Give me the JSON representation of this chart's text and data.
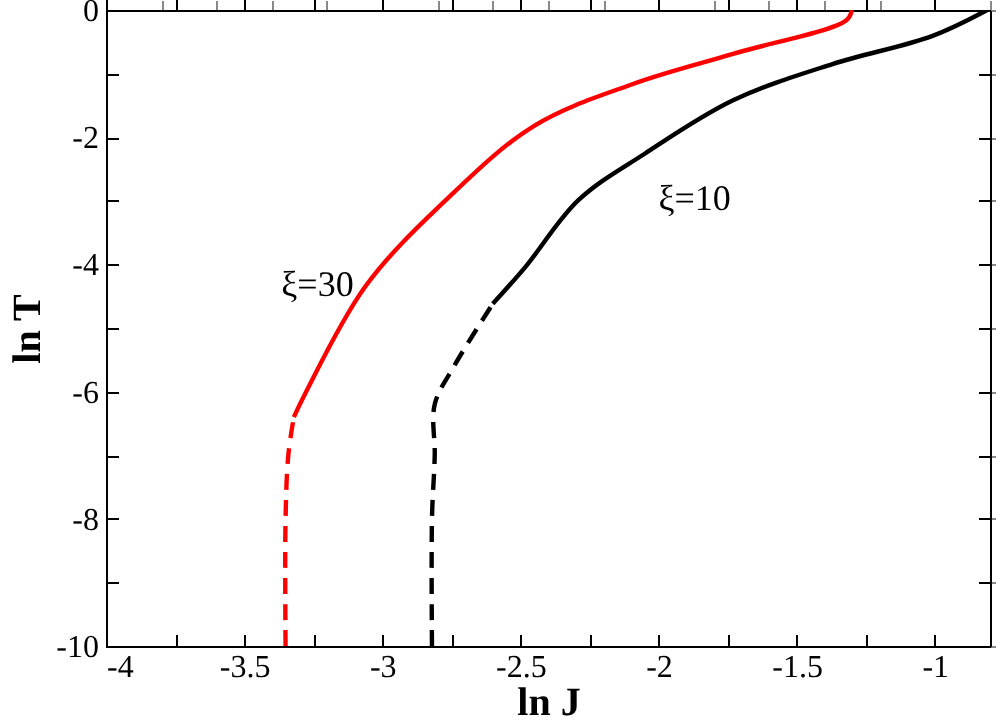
{
  "chart_data": {
    "type": "line",
    "xlabel": "ln J",
    "ylabel": "ln T",
    "xlim": [
      -4,
      -0.8
    ],
    "ylim": [
      -10,
      0
    ],
    "xticks": [
      -4,
      {
        "value": -3.75,
        "label": null
      },
      -3.5,
      {
        "value": -3.25,
        "label": null
      },
      -3,
      {
        "value": -2.75,
        "label": null
      },
      -2.5,
      {
        "value": -2.25,
        "label": null
      },
      -2,
      {
        "value": -1.75,
        "label": null
      },
      -1.5,
      {
        "value": -1.25,
        "label": null
      },
      -1
    ],
    "yticks": [
      -10,
      {
        "value": -9,
        "label": null
      },
      -8,
      {
        "value": -7,
        "label": null
      },
      -6,
      {
        "value": -5,
        "label": null
      },
      -4,
      {
        "value": -3,
        "label": null
      },
      -2,
      {
        "value": -1,
        "label": null
      },
      0
    ],
    "grid": false,
    "marker": "none",
    "series": [
      {
        "name": "ξ=30",
        "color": "#ff0000",
        "line_style": "solid",
        "x": [
          -3.32,
          -3.28,
          -3.06,
          -2.77,
          -2.45,
          -2.09,
          -1.73,
          -1.32,
          -1.3
        ],
        "values": [
          -6.4,
          -6.04,
          -4.34,
          -2.99,
          -1.82,
          -1.16,
          -0.69,
          -0.16,
          0
        ]
      },
      {
        "name": "ξ=10",
        "color": "#000000",
        "line_style": "solid",
        "x": [
          -2.6,
          -2.48,
          -2.29,
          -2.05,
          -1.73,
          -1.37,
          -1.01,
          -0.81
        ],
        "values": [
          -4.62,
          -4.03,
          -2.99,
          -2.26,
          -1.42,
          -0.85,
          -0.41,
          0
        ]
      },
      {
        "color": "#ff0000",
        "line_style": "dashed",
        "x": [
          -3.35,
          -3.35,
          -3.34,
          -3.32
        ],
        "values": [
          -10,
          -8,
          -7,
          -6.4
        ]
      },
      {
        "color": "#000000",
        "line_style": "dashed",
        "x": [
          -2.82,
          -2.82,
          -2.81,
          -2.81,
          -2.74,
          -2.6
        ],
        "values": [
          -10,
          -8,
          -7,
          -6.2,
          -5.6,
          -4.62
        ]
      }
    ]
  }
}
